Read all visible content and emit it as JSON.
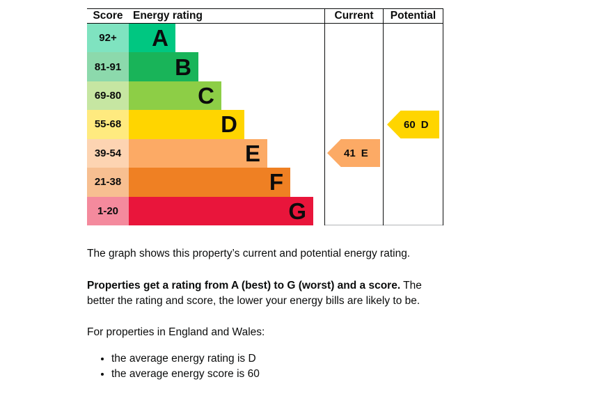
{
  "chart_data": {
    "type": "bar",
    "title": "Energy efficiency rating chart (EPC)",
    "columns": {
      "score": "Score",
      "rating": "Energy rating",
      "current": "Current",
      "potential": "Potential"
    },
    "bands": [
      {
        "score": "92+",
        "letter": "A",
        "color": "#00c781",
        "tint": "#7fe3c0"
      },
      {
        "score": "81-91",
        "letter": "B",
        "color": "#19b459",
        "tint": "#8cd9ac"
      },
      {
        "score": "69-80",
        "letter": "C",
        "color": "#8dce46",
        "tint": "#c6e6a2"
      },
      {
        "score": "55-68",
        "letter": "D",
        "color": "#ffd500",
        "tint": "#ffea7f"
      },
      {
        "score": "39-54",
        "letter": "E",
        "color": "#fcaa65",
        "tint": "#fdd4b2"
      },
      {
        "score": "21-38",
        "letter": "F",
        "color": "#ef8023",
        "tint": "#f7bf91"
      },
      {
        "score": "1-20",
        "letter": "G",
        "color": "#e9153b",
        "tint": "#f48a9d"
      }
    ],
    "current": {
      "score": "41",
      "letter": "E",
      "band": "E",
      "color": "#fcaa65"
    },
    "potential": {
      "score": "60",
      "letter": "D",
      "band": "D",
      "color": "#ffd500"
    },
    "legend_position": "none",
    "grid": false
  },
  "description": {
    "intro": "The graph shows this property’s current and potential energy rating.",
    "rating_bold": "Properties get a rating from A (best) to G (worst) and a score.",
    "rating_rest": " The better the rating and score, the lower your energy bills are likely to be.",
    "region": "For properties in England and Wales:",
    "bullets": {
      "rating": "the average energy rating is D",
      "score": "the average energy score is 60"
    }
  }
}
